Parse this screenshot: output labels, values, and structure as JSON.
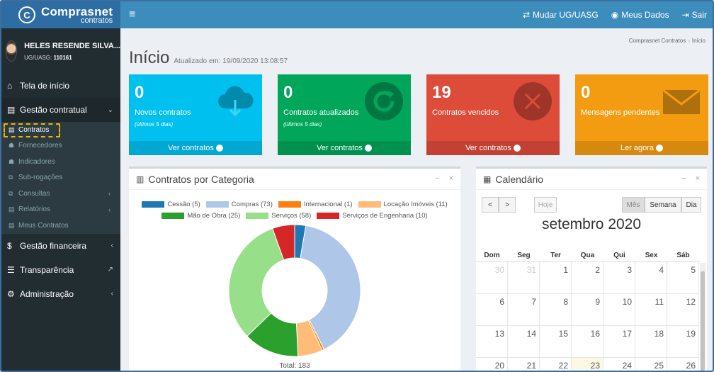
{
  "header": {
    "logo_title": "Comprasnet",
    "logo_sub": "contratos",
    "actions": [
      {
        "icon": "exchange-icon",
        "label": "Mudar UG/UASG"
      },
      {
        "icon": "user-circle-icon",
        "label": "Meus Dados"
      },
      {
        "icon": "sign-out-icon",
        "label": "Sair"
      }
    ]
  },
  "user": {
    "name": "HELES RESENDE SILVA...",
    "uasg_label": "UG/UASG:",
    "uasg_value": "110161"
  },
  "sidebar": {
    "items": [
      {
        "icon": "home-icon",
        "label": "Tela de início"
      },
      {
        "icon": "file-icon",
        "label": "Gestão contratual"
      },
      {
        "icon": "dollar-icon",
        "label": "Gestão financeira"
      },
      {
        "icon": "list-icon",
        "label": "Transparência"
      },
      {
        "icon": "cogs-icon",
        "label": "Administração"
      }
    ],
    "sub_items": [
      {
        "icon": "file-text-icon",
        "label": "Contratos"
      },
      {
        "icon": "users-icon",
        "label": "Fornecedores"
      },
      {
        "icon": "users-icon",
        "label": "Indicadores"
      },
      {
        "icon": "copy-icon",
        "label": "Sub-rogações"
      },
      {
        "icon": "copy-icon",
        "label": "Consultas"
      },
      {
        "icon": "file-text-icon",
        "label": "Relatórios"
      },
      {
        "icon": "file-text-icon",
        "label": "Meus Contratos"
      }
    ]
  },
  "page": {
    "title": "Início",
    "updated": "Atualizado em: 19/09/2020 13:08:57",
    "breadcrumb": [
      "Comprasnet Contratos",
      "Início"
    ]
  },
  "boxes": [
    {
      "value": "0",
      "label": "Novos contratos",
      "sub": "(últimos 5 dias)",
      "link": "Ver contratos",
      "color": "#00c0ef",
      "icon": "cloud-download-icon"
    },
    {
      "value": "0",
      "label": "Contratos atualizados",
      "sub": "(últimos 5 dias)",
      "link": "Ver contratos",
      "color": "#00a65a",
      "icon": "refresh-icon"
    },
    {
      "value": "19",
      "label": "Contratos vencidos",
      "sub": "",
      "link": "Ver contratos",
      "color": "#dd4b39",
      "icon": "times-circle-icon"
    },
    {
      "value": "0",
      "label": "Mensagens pendentes",
      "sub": "",
      "link": "Ler agora",
      "color": "#f39c12",
      "icon": "envelope-icon"
    }
  ],
  "category_panel": {
    "title": "Contratos por Categoria",
    "total": "Total: 183"
  },
  "chart_data": {
    "type": "pie",
    "variant": "doughnut",
    "categories": [
      "Cessão (5)",
      "Compras (73)",
      "Internacional (1)",
      "Locação Imóveis (11)",
      "Mão de Obra (25)",
      "Serviços (58)",
      "Serviços de Engenharia (10)"
    ],
    "values": [
      5,
      73,
      1,
      11,
      25,
      58,
      10
    ],
    "colors": [
      "#1f77b4",
      "#aec7e8",
      "#ff7f0e",
      "#ffbb78",
      "#2ca02c",
      "#98df8a",
      "#d62728"
    ],
    "legend": "top"
  },
  "calendar": {
    "title": "Calendário",
    "prev": "<",
    "next": ">",
    "today": "Hoje",
    "views": [
      "Mês",
      "Semana",
      "Dia"
    ],
    "month": "setembro 2020",
    "weekdays": [
      "Dom",
      "Seg",
      "Ter",
      "Qua",
      "Qui",
      "Sex",
      "Sáb"
    ],
    "weeks": [
      [
        "30",
        "31",
        "1",
        "2",
        "3",
        "4",
        "5"
      ],
      [
        "6",
        "7",
        "8",
        "9",
        "10",
        "11",
        "12"
      ],
      [
        "13",
        "14",
        "15",
        "16",
        "17",
        "18",
        "19"
      ],
      [
        "20",
        "21",
        "22",
        "23",
        "24",
        "25",
        "26"
      ]
    ],
    "other_month": [
      "30",
      "31"
    ],
    "today_day": "23"
  }
}
